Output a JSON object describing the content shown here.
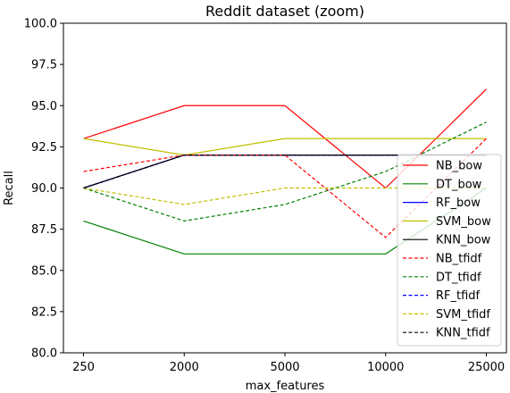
{
  "chart_data": {
    "type": "line",
    "title": "Reddit dataset (zoom)",
    "xlabel": "max_features",
    "ylabel": "Recall",
    "categories": [
      "250",
      "2000",
      "5000",
      "10000",
      "25000"
    ],
    "ylim": [
      80.0,
      100.0
    ],
    "yticks": [
      "80.0",
      "82.5",
      "85.0",
      "87.5",
      "90.0",
      "92.5",
      "95.0",
      "97.5",
      "100.0"
    ],
    "grid": false,
    "legend_position": "lower-right",
    "series": [
      {
        "name": "NB_bow",
        "color": "#ff0000",
        "dash": "solid",
        "values": [
          93,
          95,
          95,
          90,
          96
        ]
      },
      {
        "name": "DT_bow",
        "color": "#008000",
        "dash": "solid",
        "values": [
          88,
          86,
          86,
          86,
          90
        ]
      },
      {
        "name": "RF_bow",
        "color": "#0000ff",
        "dash": "solid",
        "values": [
          90,
          92,
          92,
          92,
          92
        ]
      },
      {
        "name": "SVM_bow",
        "color": "#bfbf00",
        "dash": "solid",
        "values": [
          93,
          92,
          93,
          93,
          93
        ]
      },
      {
        "name": "KNN_bow",
        "color": "#000000",
        "dash": "solid",
        "values": [
          90,
          92,
          92,
          92,
          92
        ]
      },
      {
        "name": "NB_tfidf",
        "color": "#ff0000",
        "dash": "dashed",
        "values": [
          91,
          92,
          92,
          87,
          93
        ]
      },
      {
        "name": "DT_tfidf",
        "color": "#008000",
        "dash": "dashed",
        "values": [
          90,
          88,
          89,
          91,
          94
        ]
      },
      {
        "name": "RF_tfidf",
        "color": "#0000ff",
        "dash": "dashed",
        "values": [
          90,
          92,
          92,
          92,
          92
        ]
      },
      {
        "name": "SVM_tfidf",
        "color": "#bfbf00",
        "dash": "dashed",
        "values": [
          90,
          89,
          90,
          90,
          90
        ]
      },
      {
        "name": "KNN_tfidf",
        "color": "#000000",
        "dash": "dashed",
        "values": [
          90,
          92,
          92,
          92,
          92
        ]
      }
    ]
  }
}
